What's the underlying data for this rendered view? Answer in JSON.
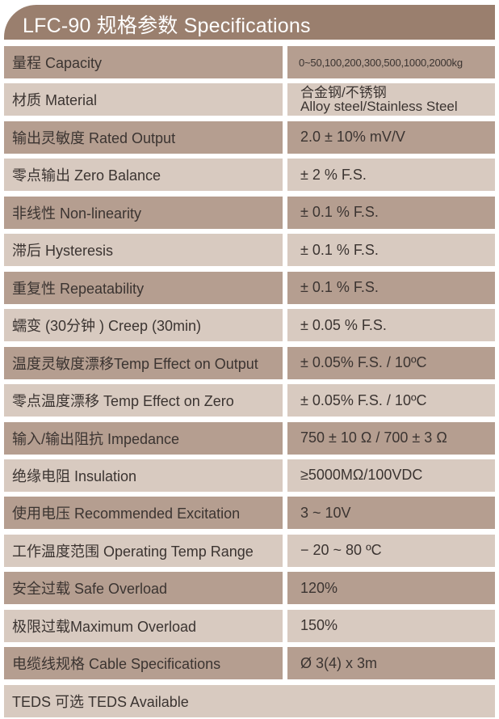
{
  "title": "LFC-90 规格参数 Specifications",
  "colors": {
    "header": "#9a7f6e",
    "row_dark": "#b59e90",
    "row_light": "#d8cac0",
    "text": "#3b3431"
  },
  "rows": [
    {
      "label": "量程 Capacity",
      "value": "0~50,100,200,300,500,1000,2000kg"
    },
    {
      "label": "材质 Material",
      "value": "合金钢/不锈钢",
      "value2": "Alloy steel/Stainless Steel"
    },
    {
      "label": "输出灵敏度 Rated Output",
      "value": "2.0 ± 10% mV/V"
    },
    {
      "label": "零点输出  Zero Balance",
      "value": "± 2 % F.S."
    },
    {
      "label": "非线性 Non-linearity",
      "value": "± 0.1 % F.S."
    },
    {
      "label": "滞后 Hysteresis",
      "value": "± 0.1 % F.S."
    },
    {
      "label": "重复性 Repeatability",
      "value": "± 0.1 % F.S."
    },
    {
      "label": "蠕变 (30分钟 ) Creep (30min)",
      "value": "± 0.05 % F.S."
    },
    {
      "label": "温度灵敏度漂移Temp Effect on Output",
      "value": "± 0.05% F.S. / 10ºC"
    },
    {
      "label": "零点温度漂移 Temp Effect on Zero",
      "value": "± 0.05% F.S. / 10ºC"
    },
    {
      "label": "输入/输出阻抗 Impedance",
      "value": "750 ± 10 Ω / 700 ± 3 Ω"
    },
    {
      "label": "绝缘电阻  Insulation",
      "value": "≥5000MΩ/100VDC"
    },
    {
      "label": "使用电压 Recommended Excitation",
      "value": "3 ~ 10V"
    },
    {
      "label": "工作温度范围 Operating Temp  Range",
      "value": "− 20 ~ 80 ºC"
    },
    {
      "label": "安全过载 Safe Overload",
      "value": "120%"
    },
    {
      "label": "极限过载Maximum Overload",
      "value": "150%"
    },
    {
      "label": "电缆线规格 Cable Specifications",
      "value": "Ø 3(4) x 3m"
    }
  ],
  "footer_row": {
    "label": "TEDS 可选 TEDS Available"
  }
}
